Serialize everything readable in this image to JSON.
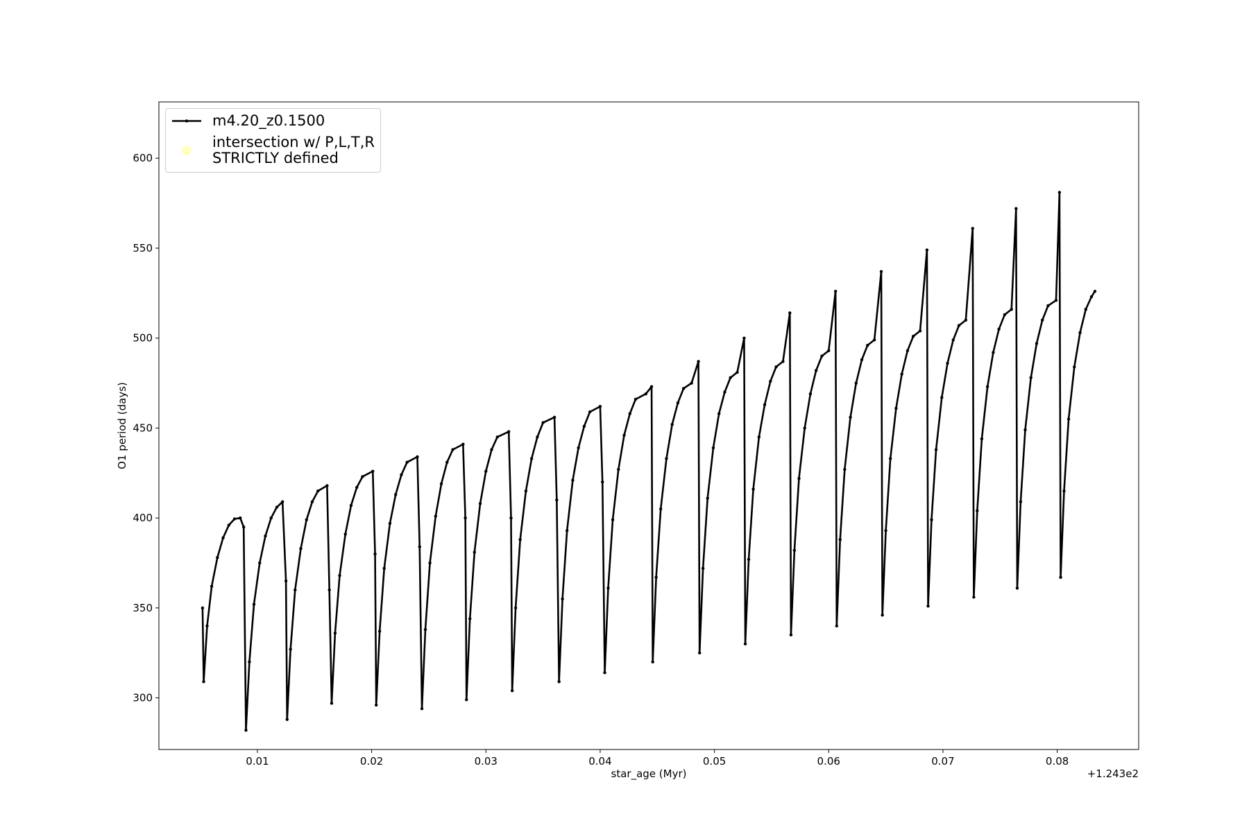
{
  "chart_data": {
    "type": "line",
    "x_label": "star_age (Myr)",
    "y_label": "O1 period (days)",
    "x_offset_label": "+1.243e2",
    "xlim": [
      0.00138,
      0.08713
    ],
    "ylim": [
      271.3,
      631.3
    ],
    "xticks": [
      0.01,
      0.02,
      0.03,
      0.04,
      0.05,
      0.06,
      0.07,
      0.08
    ],
    "yticks": [
      300,
      350,
      400,
      450,
      500,
      550,
      600
    ],
    "grid": false,
    "legend": "upper left",
    "series": [
      {
        "name": "m4.20_z0.1500",
        "color": "#000000",
        "x": [
          0.0052,
          0.0053,
          0.0056,
          0.006,
          0.0065,
          0.007,
          0.0075,
          0.008,
          0.0085,
          0.0088,
          0.009,
          0.0093,
          0.0097,
          0.0102,
          0.0107,
          0.0112,
          0.0117,
          0.0122,
          0.0125,
          0.0126,
          0.0129,
          0.0133,
          0.0138,
          0.0143,
          0.0148,
          0.0153,
          0.0161,
          0.0163,
          0.0165,
          0.0168,
          0.0172,
          0.0177,
          0.0182,
          0.0187,
          0.0192,
          0.0201,
          0.0203,
          0.0204,
          0.0207,
          0.0211,
          0.0216,
          0.0221,
          0.0226,
          0.0231,
          0.024,
          0.0242,
          0.0244,
          0.0247,
          0.0251,
          0.0256,
          0.0261,
          0.0266,
          0.0271,
          0.028,
          0.0282,
          0.0283,
          0.0286,
          0.029,
          0.0295,
          0.03,
          0.0305,
          0.031,
          0.032,
          0.0322,
          0.0323,
          0.0326,
          0.033,
          0.0335,
          0.034,
          0.0345,
          0.035,
          0.036,
          0.0362,
          0.0364,
          0.0367,
          0.0371,
          0.0376,
          0.0381,
          0.0386,
          0.0391,
          0.04,
          0.0402,
          0.0404,
          0.0407,
          0.0411,
          0.0416,
          0.0421,
          0.0426,
          0.0431,
          0.044,
          0.0445,
          0.0446,
          0.0449,
          0.0453,
          0.0458,
          0.0463,
          0.0468,
          0.0473,
          0.048,
          0.0486,
          0.0487,
          0.049,
          0.0494,
          0.0499,
          0.0504,
          0.0509,
          0.0514,
          0.052,
          0.0526,
          0.0527,
          0.053,
          0.0534,
          0.0539,
          0.0544,
          0.0549,
          0.0554,
          0.056,
          0.0566,
          0.0567,
          0.057,
          0.0574,
          0.0579,
          0.0584,
          0.0589,
          0.0594,
          0.06,
          0.0606,
          0.0607,
          0.061,
          0.0614,
          0.0619,
          0.0624,
          0.0629,
          0.0634,
          0.064,
          0.0646,
          0.0647,
          0.065,
          0.0654,
          0.0659,
          0.0664,
          0.0669,
          0.0674,
          0.068,
          0.0686,
          0.0687,
          0.069,
          0.0694,
          0.0699,
          0.0704,
          0.0709,
          0.0714,
          0.072,
          0.0726,
          0.0727,
          0.073,
          0.0734,
          0.0739,
          0.0744,
          0.0749,
          0.0754,
          0.076,
          0.0764,
          0.0765,
          0.0768,
          0.0772,
          0.0777,
          0.0782,
          0.0787,
          0.0792,
          0.0799,
          0.0802,
          0.0803,
          0.0806,
          0.081,
          0.0815,
          0.082,
          0.0825,
          0.083,
          0.0833
        ],
        "values": [
          350,
          309,
          340,
          362,
          378,
          389,
          396,
          399.5,
          400,
          395,
          282,
          320,
          352,
          375,
          390,
          400,
          406,
          409,
          365,
          288,
          327,
          360,
          383,
          399,
          409,
          415,
          418,
          360,
          297,
          336,
          368,
          391,
          407,
          417,
          423,
          426,
          380,
          296,
          337,
          372,
          397,
          413,
          424,
          431,
          434,
          384,
          294,
          338,
          375,
          401,
          419,
          431,
          438,
          441,
          400,
          299,
          344,
          381,
          408,
          426,
          438,
          445,
          448,
          400,
          304,
          350,
          388,
          415,
          433,
          445,
          453,
          456,
          410,
          309,
          355,
          393,
          421,
          439,
          451,
          459,
          462,
          420,
          314,
          361,
          399,
          427,
          446,
          458,
          466,
          469,
          473,
          320,
          367,
          405,
          433,
          452,
          464,
          472,
          475,
          487,
          325,
          372,
          411,
          439,
          458,
          470,
          478,
          481,
          500,
          330,
          377,
          416,
          445,
          463,
          476,
          484,
          487,
          514,
          335,
          382,
          422,
          450,
          469,
          482,
          490,
          493,
          526,
          340,
          388,
          427,
          456,
          475,
          488,
          496,
          499,
          537,
          346,
          393,
          433,
          461,
          480,
          493,
          501,
          504,
          549,
          351,
          399,
          438,
          467,
          486,
          499,
          507,
          510,
          561,
          356,
          404,
          444,
          473,
          492,
          505,
          513,
          516,
          572,
          361,
          409,
          449,
          478,
          497,
          510,
          518,
          521,
          581,
          367,
          415,
          455,
          484,
          503,
          516,
          523,
          526
        ]
      },
      {
        "name": "intersection w/ P,L,T,R\nSTRICTLY defined",
        "color": "#ffffc0",
        "type": "scatter",
        "x": [],
        "values": []
      }
    ]
  }
}
